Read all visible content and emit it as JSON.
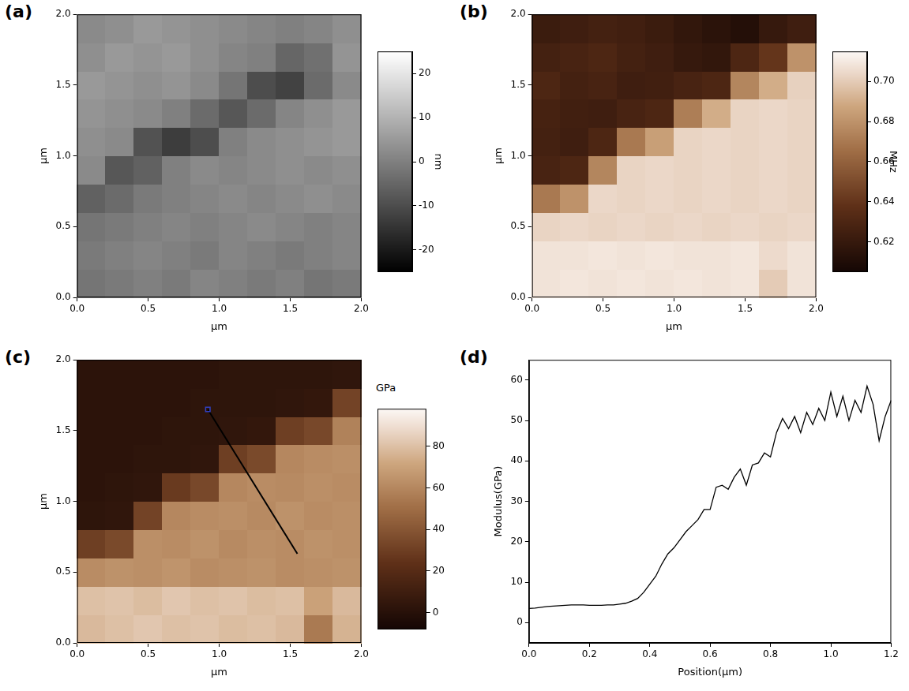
{
  "chart_data": [
    {
      "panel": "(a)",
      "type": "heatmap",
      "x_label": "μm",
      "y_label": "μm",
      "xlim": [
        0,
        2
      ],
      "ylim": [
        0,
        2
      ],
      "xticks": [
        {
          "value": 0,
          "label": "0.0"
        },
        {
          "value": 0.5,
          "label": "0.5"
        },
        {
          "value": 1,
          "label": "1.0"
        },
        {
          "value": 1.5,
          "label": "1.5"
        },
        {
          "value": 2,
          "label": "2.0"
        }
      ],
      "yticks": [
        {
          "value": 0,
          "label": "0.0"
        },
        {
          "value": 0.5,
          "label": "0.5"
        },
        {
          "value": 1,
          "label": "1.0"
        },
        {
          "value": 1.5,
          "label": "1.5"
        },
        {
          "value": 2,
          "label": "2.0"
        }
      ],
      "grid": false,
      "cells": [
        [
          -2,
          -1,
          0,
          -1,
          1,
          0,
          -1,
          0,
          -2,
          -1
        ],
        [
          -1,
          0,
          1,
          0,
          -1,
          1,
          0,
          -1,
          0,
          1
        ],
        [
          -2,
          -1,
          0,
          1,
          0,
          1,
          2,
          1,
          0,
          1
        ],
        [
          -6,
          -4,
          -1,
          0,
          1,
          2,
          1,
          2,
          3,
          2
        ],
        [
          2,
          -8,
          -6,
          0,
          2,
          1,
          2,
          3,
          2,
          3
        ],
        [
          3,
          2,
          -9,
          -13,
          -10,
          0,
          2,
          3,
          4,
          5
        ],
        [
          4,
          3,
          2,
          0,
          -4,
          -8,
          -4,
          1,
          3,
          5
        ],
        [
          5,
          4,
          3,
          4,
          2,
          -2,
          -10,
          -12,
          -4,
          2
        ],
        [
          3,
          5,
          4,
          5,
          3,
          1,
          0,
          -5,
          -3,
          4
        ],
        [
          2,
          3,
          5,
          4,
          3,
          2,
          1,
          0,
          1,
          3
        ]
      ],
      "colorbar": {
        "range": [
          -25,
          25
        ],
        "ticks": [
          -20,
          -10,
          0,
          10,
          20
        ],
        "label": "nm"
      }
    },
    {
      "panel": "(b)",
      "type": "heatmap",
      "x_label": "μm",
      "y_label": "μm",
      "xlim": [
        0,
        2
      ],
      "ylim": [
        0,
        2
      ],
      "xticks": [
        {
          "value": 0,
          "label": "0.0"
        },
        {
          "value": 0.5,
          "label": "0.5"
        },
        {
          "value": 1,
          "label": "1.0"
        },
        {
          "value": 1.5,
          "label": "1.5"
        },
        {
          "value": 2,
          "label": "2.0"
        }
      ],
      "yticks": [
        {
          "value": 0,
          "label": "0.0"
        },
        {
          "value": 0.5,
          "label": "0.5"
        },
        {
          "value": 1,
          "label": "1.0"
        },
        {
          "value": 1.5,
          "label": "1.5"
        },
        {
          "value": 2,
          "label": "2.0"
        }
      ],
      "grid": false,
      "cells": [
        [
          0.708,
          0.709,
          0.708,
          0.709,
          0.708,
          0.709,
          0.708,
          0.709,
          0.7,
          0.708
        ],
        [
          0.708,
          0.708,
          0.709,
          0.708,
          0.709,
          0.708,
          0.708,
          0.709,
          0.705,
          0.708
        ],
        [
          0.703,
          0.704,
          0.703,
          0.704,
          0.703,
          0.704,
          0.703,
          0.704,
          0.703,
          0.704
        ],
        [
          0.67,
          0.68,
          0.704,
          0.703,
          0.704,
          0.703,
          0.704,
          0.703,
          0.704,
          0.703
        ],
        [
          0.628,
          0.63,
          0.675,
          0.703,
          0.704,
          0.703,
          0.704,
          0.703,
          0.704,
          0.703
        ],
        [
          0.626,
          0.624,
          0.63,
          0.67,
          0.685,
          0.703,
          0.704,
          0.703,
          0.704,
          0.703
        ],
        [
          0.627,
          0.625,
          0.624,
          0.628,
          0.63,
          0.672,
          0.69,
          0.703,
          0.704,
          0.703
        ],
        [
          0.63,
          0.626,
          0.628,
          0.624,
          0.625,
          0.628,
          0.63,
          0.675,
          0.69,
          0.702
        ],
        [
          0.626,
          0.628,
          0.63,
          0.626,
          0.624,
          0.62,
          0.618,
          0.63,
          0.64,
          0.68
        ],
        [
          0.622,
          0.624,
          0.626,
          0.625,
          0.622,
          0.618,
          0.615,
          0.612,
          0.62,
          0.624
        ]
      ],
      "colorbar": {
        "range": [
          0.605,
          0.715
        ],
        "ticks": [
          0.62,
          0.64,
          0.66,
          0.68,
          {
            "value": 0.7,
            "label": "0.70"
          }
        ],
        "label": "MHz"
      }
    },
    {
      "panel": "(c)",
      "type": "heatmap",
      "x_label": "μm",
      "y_label": "μm",
      "xlim": [
        0,
        2
      ],
      "ylim": [
        0,
        2
      ],
      "xticks": [
        {
          "value": 0,
          "label": "0.0"
        },
        {
          "value": 0.5,
          "label": "0.5"
        },
        {
          "value": 1,
          "label": "1.0"
        },
        {
          "value": 1.5,
          "label": "1.5"
        },
        {
          "value": 2,
          "label": "2.0"
        }
      ],
      "yticks": [
        {
          "value": 0,
          "label": "0.0"
        },
        {
          "value": 0.5,
          "label": "0.5"
        },
        {
          "value": 1,
          "label": "1.0"
        },
        {
          "value": 1.5,
          "label": "1.5"
        },
        {
          "value": 2,
          "label": "2.0"
        }
      ],
      "grid": false,
      "cells": [
        [
          78,
          80,
          82,
          80,
          81,
          79,
          80,
          78,
          55,
          76
        ],
        [
          80,
          81,
          79,
          82,
          80,
          81,
          79,
          80,
          70,
          78
        ],
        [
          62,
          64,
          63,
          65,
          62,
          63,
          64,
          62,
          63,
          64
        ],
        [
          30,
          35,
          63,
          62,
          64,
          61,
          63,
          62,
          64,
          63
        ],
        [
          3,
          4,
          32,
          60,
          62,
          63,
          61,
          64,
          62,
          63
        ],
        [
          2,
          3,
          4,
          28,
          34,
          60,
          62,
          61,
          63,
          62
        ],
        [
          2,
          2,
          3,
          3,
          4,
          30,
          35,
          60,
          62,
          63
        ],
        [
          2,
          2,
          2,
          3,
          3,
          4,
          5,
          30,
          34,
          58
        ],
        [
          2,
          2,
          2,
          2,
          3,
          3,
          3,
          4,
          5,
          32
        ],
        [
          2,
          2,
          2,
          2,
          2,
          3,
          3,
          3,
          3,
          4
        ]
      ],
      "profile_line": {
        "x": [
          0.92,
          1.55
        ],
        "y": [
          1.65,
          0.63
        ]
      },
      "colorbar": {
        "range": [
          -8,
          98
        ],
        "ticks": [
          0,
          20,
          40,
          60,
          80
        ],
        "label": "GPa"
      }
    },
    {
      "panel": "(d)",
      "type": "line",
      "x_label": "Position(μm)",
      "y_label": "Modulus(GPa)",
      "x": [
        0,
        0.02,
        0.04,
        0.06,
        0.08,
        0.1,
        0.12,
        0.14,
        0.16,
        0.18,
        0.2,
        0.22,
        0.24,
        0.26,
        0.28,
        0.3,
        0.32,
        0.34,
        0.36,
        0.38,
        0.4,
        0.42,
        0.44,
        0.46,
        0.48,
        0.5,
        0.52,
        0.54,
        0.56,
        0.58,
        0.6,
        0.62,
        0.64,
        0.66,
        0.68,
        0.7,
        0.72,
        0.74,
        0.76,
        0.78,
        0.8,
        0.82,
        0.84,
        0.86,
        0.88,
        0.9,
        0.92,
        0.94,
        0.96,
        0.98,
        1.0,
        1.02,
        1.04,
        1.06,
        1.08,
        1.1,
        1.12,
        1.14,
        1.16,
        1.18,
        1.2
      ],
      "values": [
        3.5,
        3.6,
        3.8,
        4.0,
        4.1,
        4.2,
        4.3,
        4.4,
        4.4,
        4.4,
        4.3,
        4.3,
        4.3,
        4.4,
        4.4,
        4.6,
        4.8,
        5.3,
        6.0,
        7.5,
        9.5,
        11.5,
        14.5,
        17,
        18.5,
        20.5,
        22.5,
        24,
        25.5,
        28,
        28,
        33.5,
        34,
        33,
        36,
        38,
        34,
        39,
        39.5,
        42,
        41,
        47,
        50.5,
        48,
        51,
        47,
        52,
        49,
        53,
        50,
        57,
        51,
        56,
        50,
        55,
        52,
        58.5,
        54,
        45,
        51,
        55
      ],
      "color": "#000000",
      "xlim": [
        0,
        1.2
      ],
      "xticks": [
        {
          "value": 0,
          "label": "0.0"
        },
        {
          "value": 0.2,
          "label": "0.2"
        },
        {
          "value": 0.4,
          "label": "0.4"
        },
        {
          "value": 0.6,
          "label": "0.6"
        },
        {
          "value": 0.8,
          "label": "0.8"
        },
        {
          "value": 1,
          "label": "1.0"
        },
        {
          "value": 1.2,
          "label": "1.2"
        }
      ],
      "ylim": [
        -5,
        65
      ],
      "yticks": [
        0,
        10,
        20,
        30,
        40,
        50,
        60
      ],
      "grid": false
    }
  ]
}
